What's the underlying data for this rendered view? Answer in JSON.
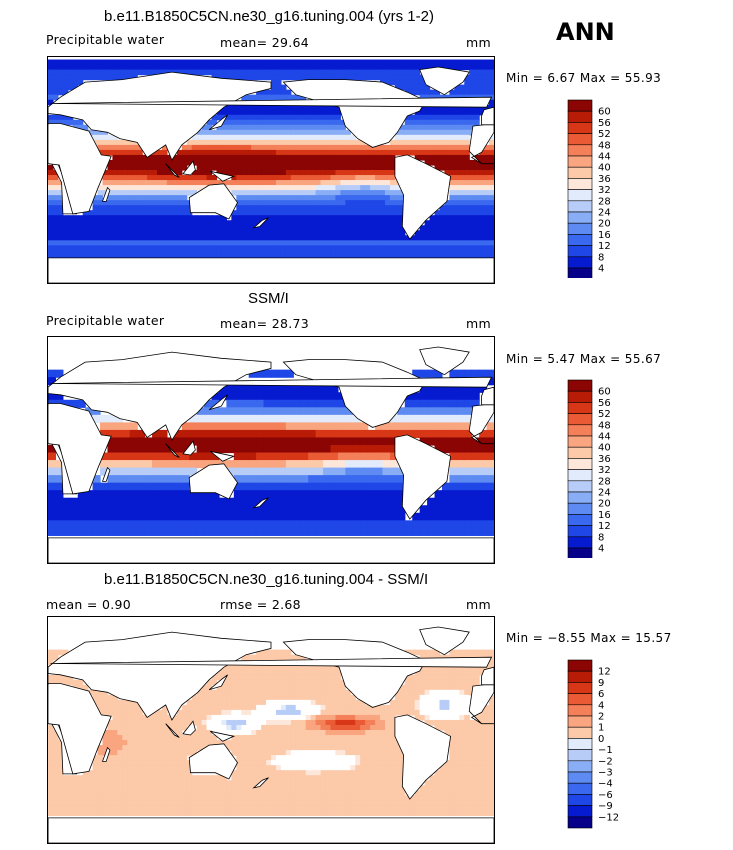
{
  "season": "ANN",
  "colors": {
    "positive_scale": [
      "#07018a",
      "#061ad0",
      "#1f46e6",
      "#3a69ef",
      "#5d8bf2",
      "#8aaef5",
      "#b7cdf8",
      "#e2ebfb",
      "#fde7da",
      "#fcc9a9",
      "#f9a57f",
      "#f4805a",
      "#ea5a34",
      "#d83717",
      "#b81b06",
      "#8a0503"
    ],
    "diff_scale": [
      "#07018a",
      "#061ad0",
      "#1f46e6",
      "#3a69ef",
      "#5d8bf2",
      "#8aaef5",
      "#b7cdf8",
      "#e2ebfb",
      "#fde7da",
      "#fcc9a9",
      "#f9a57f",
      "#f4805a",
      "#ea5a34",
      "#d83717",
      "#b81b06",
      "#8a0503"
    ]
  },
  "panels": [
    {
      "title": "b.e11.B1850C5CN.ne30_g16.tuning.004 (yrs 1-2)",
      "variable": "Precipitable water",
      "stat1": "mean=   29.64",
      "stat2": "",
      "units": "mm",
      "minmax": "Min =    6.67  Max =   55.93",
      "colorbar_labels": [
        "60",
        "56",
        "52",
        "48",
        "44",
        "40",
        "36",
        "32",
        "28",
        "24",
        "20",
        "16",
        "12",
        "8",
        "4"
      ]
    },
    {
      "title": "SSM/I",
      "variable": "Precipitable water",
      "stat1": "mean=   28.73",
      "stat2": "",
      "units": "mm",
      "minmax": "Min =    5.47  Max =   55.67",
      "colorbar_labels": [
        "60",
        "56",
        "52",
        "48",
        "44",
        "40",
        "36",
        "32",
        "28",
        "24",
        "20",
        "16",
        "12",
        "8",
        "4"
      ]
    },
    {
      "title": "b.e11.B1850C5CN.ne30_g16.tuning.004 - SSM/I",
      "variable": "mean =    0.90",
      "stat1": "rmse =    2.68",
      "stat2": "",
      "units": "mm",
      "minmax": "Min =  −8.55  Max =   15.57",
      "colorbar_labels": [
        "12",
        "9",
        "6",
        "4",
        "2",
        "1",
        "0",
        "−1",
        "−2",
        "−3",
        "−4",
        "−6",
        "−9",
        "−12"
      ]
    }
  ],
  "chart_data": [
    {
      "type": "heatmap",
      "title": "b.e11.B1850C5CN.ne30_g16.tuning.004 (yrs 1-2)",
      "variable": "Precipitable water",
      "units": "mm",
      "mean": 29.64,
      "min": 6.67,
      "max": 55.93,
      "levels": [
        4,
        8,
        12,
        16,
        20,
        24,
        28,
        32,
        36,
        40,
        44,
        48,
        52,
        56,
        60
      ]
    },
    {
      "type": "heatmap",
      "title": "SSM/I",
      "variable": "Precipitable water",
      "units": "mm",
      "mean": 28.73,
      "min": 5.47,
      "max": 55.67,
      "levels": [
        4,
        8,
        12,
        16,
        20,
        24,
        28,
        32,
        36,
        40,
        44,
        48,
        52,
        56,
        60
      ]
    },
    {
      "type": "heatmap",
      "title": "b.e11.B1850C5CN.ne30_g16.tuning.004 - SSM/I",
      "units": "mm",
      "mean": 0.9,
      "rmse": 2.68,
      "min": -8.55,
      "max": 15.57,
      "levels": [
        -12,
        -9,
        -6,
        -4,
        -3,
        -2,
        -1,
        0,
        1,
        2,
        4,
        6,
        9,
        12
      ]
    }
  ]
}
